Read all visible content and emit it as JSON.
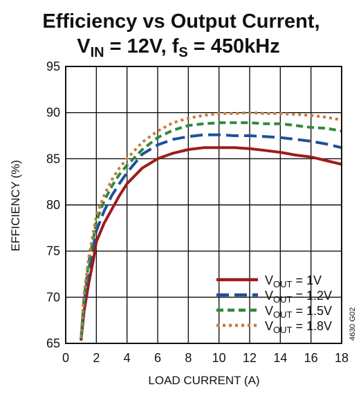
{
  "chart_data": {
    "type": "line",
    "title": {
      "line1": "Efficiency vs Output Current,",
      "vin_main": "V",
      "vin_sub": "IN",
      "vin_rest": " = 12V, f",
      "fs_sub": "S",
      "fs_rest": " = 450kHz"
    },
    "xlabel": "LOAD CURRENT (A)",
    "ylabel": "EFFICIENCY (%)",
    "xlim": [
      0,
      18
    ],
    "ylim": [
      65,
      95
    ],
    "xticks": [
      0,
      2,
      4,
      6,
      8,
      10,
      12,
      14,
      16,
      18
    ],
    "yticks": [
      65,
      70,
      75,
      80,
      85,
      90,
      95
    ],
    "grid": true,
    "legend_position": "bottom-right",
    "side_note": "4630 G02",
    "series": [
      {
        "name": "VOUT = 1V",
        "label_main": "V",
        "label_sub": "OUT",
        "label_rest": " = 1V",
        "color": "#9e1b1b",
        "style": "solid",
        "x": [
          1.0,
          1.2,
          1.5,
          1.8,
          2.0,
          2.5,
          3.0,
          3.5,
          4.0,
          5.0,
          6.0,
          7.0,
          8.0,
          9.0,
          10.0,
          11.0,
          12.0,
          13.0,
          14.0,
          15.0,
          16.0,
          17.0,
          18.0
        ],
        "y": [
          65.3,
          68.5,
          71.5,
          74.0,
          76.0,
          78.0,
          79.5,
          81.0,
          82.3,
          84.0,
          85.0,
          85.6,
          86.0,
          86.2,
          86.2,
          86.2,
          86.1,
          85.9,
          85.7,
          85.4,
          85.2,
          84.8,
          84.4
        ]
      },
      {
        "name": "VOUT = 1.2V",
        "label_main": "V",
        "label_sub": "OUT",
        "label_rest": " = 1.2V",
        "color": "#1f4f9c",
        "style": "longdash",
        "x": [
          1.0,
          1.2,
          1.5,
          1.8,
          2.0,
          2.5,
          3.0,
          3.5,
          4.0,
          5.0,
          6.0,
          7.0,
          8.0,
          9.0,
          10.0,
          11.0,
          12.0,
          13.0,
          14.0,
          15.0,
          16.0,
          17.0,
          18.0
        ],
        "y": [
          65.4,
          69.5,
          73.0,
          75.5,
          77.2,
          79.3,
          81.0,
          82.3,
          83.5,
          85.5,
          86.5,
          87.1,
          87.4,
          87.6,
          87.6,
          87.5,
          87.5,
          87.4,
          87.3,
          87.1,
          86.9,
          86.6,
          86.2
        ]
      },
      {
        "name": "VOUT = 1.5V",
        "label_main": "V",
        "label_sub": "OUT",
        "label_rest": " = 1.5V",
        "color": "#2e8b3a",
        "style": "dash",
        "x": [
          1.0,
          1.2,
          1.5,
          1.8,
          2.0,
          2.5,
          3.0,
          3.5,
          4.0,
          5.0,
          6.0,
          7.0,
          8.0,
          9.0,
          10.0,
          11.0,
          12.0,
          13.0,
          14.0,
          15.0,
          16.0,
          17.0,
          18.0
        ],
        "y": [
          65.5,
          70.0,
          73.8,
          76.3,
          78.2,
          80.4,
          82.0,
          83.3,
          84.3,
          86.0,
          87.3,
          88.1,
          88.6,
          88.8,
          88.9,
          88.9,
          88.9,
          88.8,
          88.8,
          88.6,
          88.4,
          88.3,
          88.0
        ]
      },
      {
        "name": "VOUT = 1.8V",
        "label_main": "V",
        "label_sub": "OUT",
        "label_rest": " = 1.8V",
        "color": "#c87a3a",
        "style": "dot",
        "x": [
          1.0,
          1.2,
          1.5,
          1.8,
          2.0,
          2.5,
          3.0,
          3.5,
          4.0,
          5.0,
          6.0,
          7.0,
          8.0,
          9.0,
          10.0,
          11.0,
          12.0,
          13.0,
          14.0,
          15.0,
          16.0,
          17.0,
          18.0
        ],
        "y": [
          65.6,
          70.3,
          74.3,
          77.0,
          78.8,
          81.0,
          82.7,
          84.0,
          85.0,
          86.8,
          88.0,
          88.9,
          89.4,
          89.7,
          89.9,
          89.9,
          90.0,
          89.9,
          89.9,
          89.8,
          89.7,
          89.5,
          89.2
        ]
      }
    ]
  }
}
